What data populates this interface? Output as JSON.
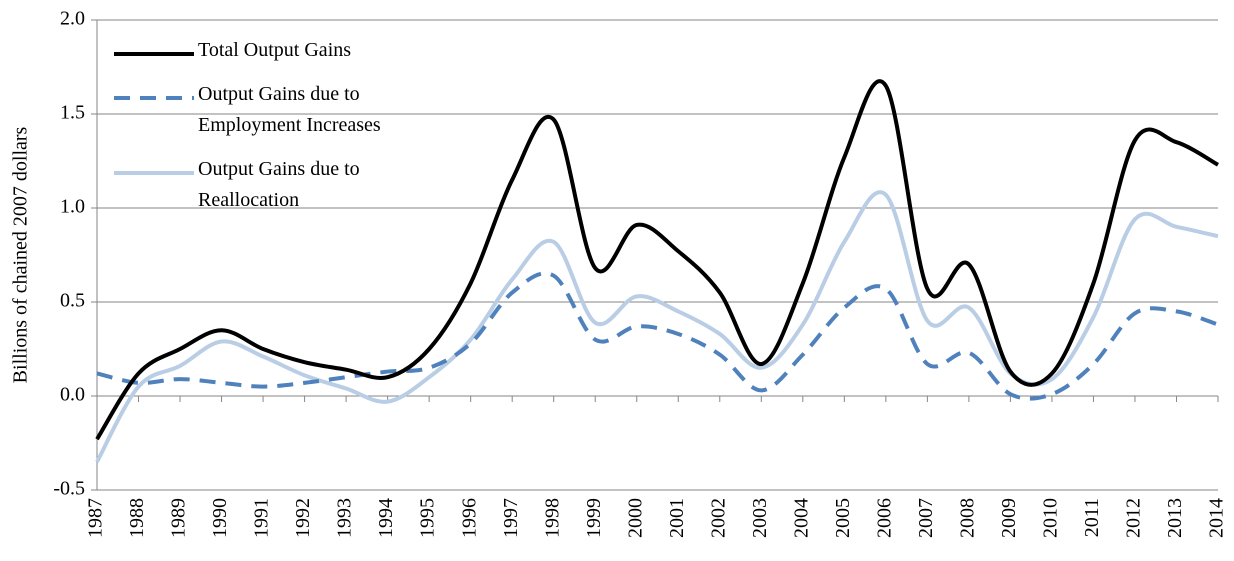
{
  "chart_data": {
    "type": "line",
    "ylabel": "Billions of chained 2007 dollars",
    "categories": [
      "1987",
      "1988",
      "1989",
      "1990",
      "1991",
      "1992",
      "1993",
      "1994",
      "1995",
      "1996",
      "1997",
      "1998",
      "1999",
      "2000",
      "2001",
      "2002",
      "2003",
      "2004",
      "2005",
      "2006",
      "2007",
      "2008",
      "2009",
      "2010",
      "2011",
      "2012",
      "2013",
      "2014"
    ],
    "series": [
      {
        "name": "Total Output Gains",
        "color": "#000000",
        "dash": "solid",
        "values": [
          -0.23,
          0.12,
          0.25,
          0.35,
          0.25,
          0.18,
          0.14,
          0.1,
          0.25,
          0.6,
          1.15,
          1.47,
          0.68,
          0.91,
          0.77,
          0.55,
          0.17,
          0.6,
          1.27,
          1.65,
          0.57,
          0.7,
          0.13,
          0.12,
          0.6,
          1.36,
          1.35,
          1.23
        ]
      },
      {
        "name": "Output Gains due to Employment Increases",
        "color": "#4f81bd",
        "dash": "dashed",
        "values": [
          0.12,
          0.07,
          0.09,
          0.07,
          0.05,
          0.07,
          0.1,
          0.13,
          0.15,
          0.28,
          0.55,
          0.64,
          0.3,
          0.37,
          0.33,
          0.22,
          0.03,
          0.22,
          0.47,
          0.57,
          0.17,
          0.23,
          0.01,
          0.01,
          0.17,
          0.44,
          0.45,
          0.38
        ]
      },
      {
        "name": "Output Gains due to Reallocation",
        "color": "#b9cde5",
        "dash": "solid",
        "values": [
          -0.35,
          0.05,
          0.16,
          0.29,
          0.21,
          0.11,
          0.04,
          -0.03,
          0.1,
          0.3,
          0.62,
          0.82,
          0.39,
          0.53,
          0.45,
          0.33,
          0.15,
          0.38,
          0.82,
          1.07,
          0.4,
          0.47,
          0.12,
          0.09,
          0.42,
          0.94,
          0.9,
          0.85
        ]
      }
    ],
    "ylim": [
      -0.5,
      2.0
    ],
    "yticks": [
      {
        "value": -0.5,
        "label": "-0.5"
      },
      {
        "value": 0,
        "label": "0.0"
      },
      0.5,
      {
        "value": 1,
        "label": "1.0"
      },
      1.5,
      {
        "value": 2,
        "label": "2.0"
      }
    ],
    "grid": true,
    "legend": "upper-left"
  }
}
